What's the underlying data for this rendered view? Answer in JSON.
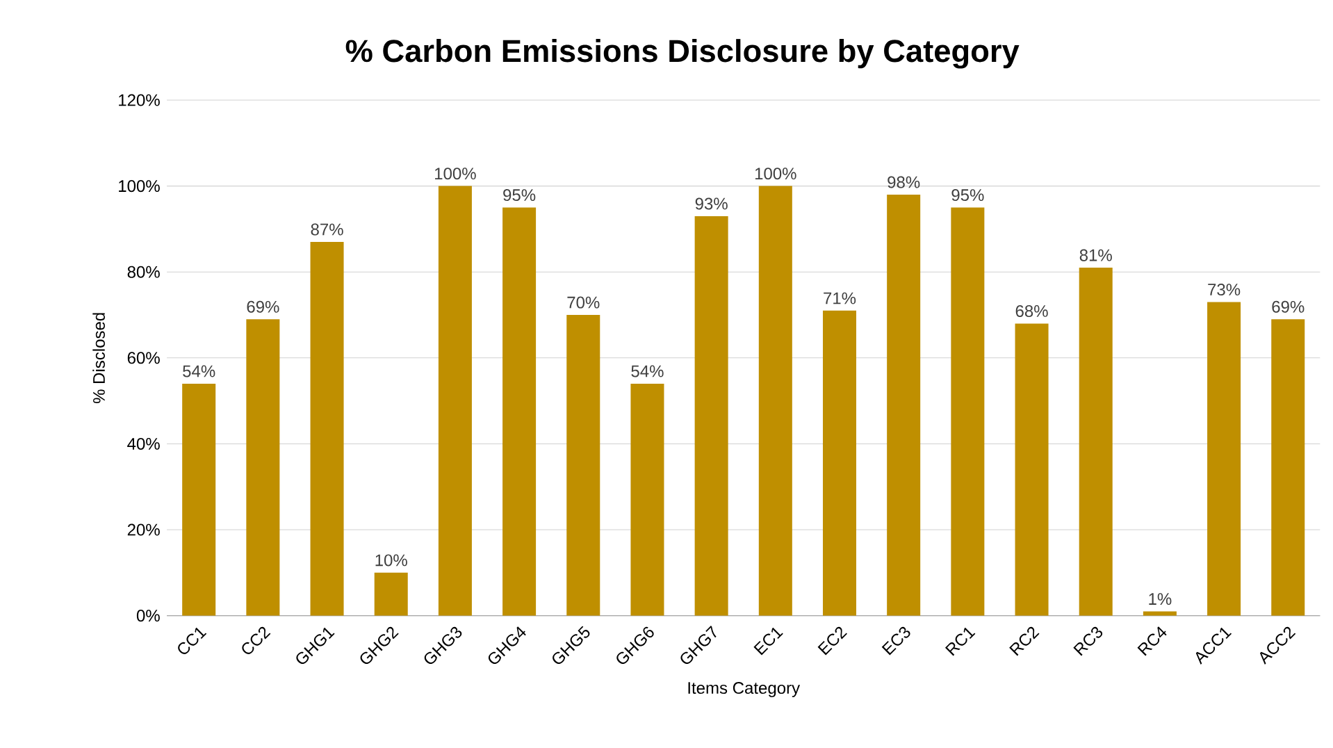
{
  "chart_data": {
    "type": "bar",
    "title": "% Carbon Emissions Disclosure by Category",
    "xlabel": "Items Category",
    "ylabel": "% Disclosed",
    "categories": [
      "CC1",
      "CC2",
      "GHG1",
      "GHG2",
      "GHG3",
      "GHG4",
      "GHG5",
      "GHG6",
      "GHG7",
      "EC1",
      "EC2",
      "EC3",
      "RC1",
      "RC2",
      "RC3",
      "RC4",
      "ACC1",
      "ACC2"
    ],
    "values": [
      54,
      69,
      87,
      10,
      100,
      95,
      70,
      54,
      93,
      100,
      71,
      98,
      95,
      68,
      81,
      1,
      73,
      69
    ],
    "value_labels": [
      "54%",
      "69%",
      "87%",
      "10%",
      "100%",
      "95%",
      "70%",
      "54%",
      "93%",
      "100%",
      "71%",
      "98%",
      "95%",
      "68%",
      "81%",
      "1%",
      "73%",
      "69%"
    ],
    "color": "#bf8f00",
    "ylim": [
      0,
      120
    ],
    "yticks": [
      {
        "value": 0,
        "label": "0%"
      },
      {
        "value": 20,
        "label": "20%"
      },
      {
        "value": 40,
        "label": "40%"
      },
      {
        "value": 60,
        "label": "60%"
      },
      {
        "value": 80,
        "label": "80%"
      },
      {
        "value": 100,
        "label": "100%"
      },
      {
        "value": 120,
        "label": "120%"
      }
    ],
    "grid": "y"
  }
}
